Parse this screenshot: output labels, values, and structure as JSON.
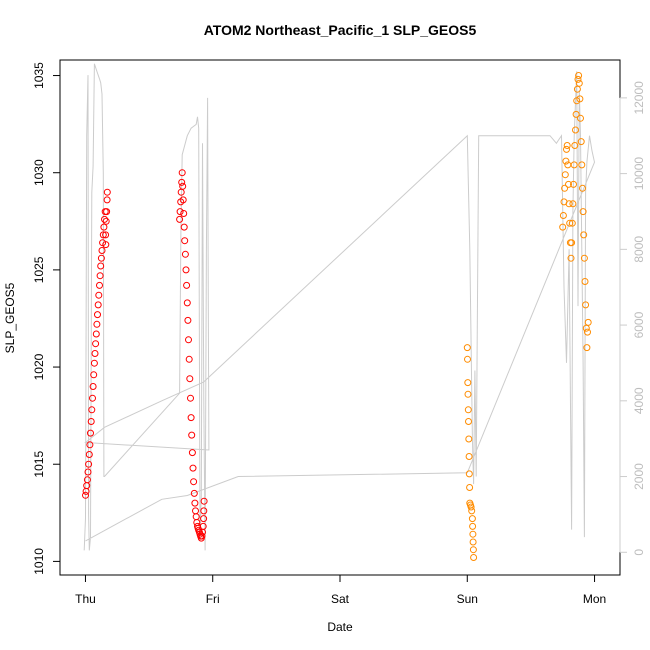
{
  "chart_data": {
    "type": "scatter",
    "title": "ATOM2 Northeast_Pacific_1 SLP_GEOS5",
    "xlabel": "Date",
    "ylabel": "SLP_GEOS5",
    "x_ticks": [
      "Thu",
      "Fri",
      "Sat",
      "Sun",
      "Mon"
    ],
    "x_range_days": [
      -0.2,
      4.2
    ],
    "ylim": [
      1009.3,
      1035.8
    ],
    "y_ticks": [
      1010,
      1015,
      1020,
      1025,
      1030,
      1035
    ],
    "y2lim": [
      -600,
      13000
    ],
    "y2_ticks": [
      0,
      2000,
      4000,
      6000,
      8000,
      10000,
      12000
    ],
    "altitude_color": "#cccccc",
    "series": [
      {
        "color": "#ff0000",
        "points": [
          [
            0.0,
            1013.4
          ],
          [
            0.005,
            1013.6
          ],
          [
            0.01,
            1013.9
          ],
          [
            0.015,
            1014.2
          ],
          [
            0.02,
            1014.6
          ],
          [
            0.025,
            1015.0
          ],
          [
            0.03,
            1015.5
          ],
          [
            0.035,
            1016.0
          ],
          [
            0.04,
            1016.6
          ],
          [
            0.045,
            1017.2
          ],
          [
            0.05,
            1017.8
          ],
          [
            0.055,
            1018.4
          ],
          [
            0.06,
            1019.0
          ],
          [
            0.065,
            1019.6
          ],
          [
            0.07,
            1020.2
          ],
          [
            0.075,
            1020.7
          ],
          [
            0.08,
            1021.2
          ],
          [
            0.085,
            1021.7
          ],
          [
            0.09,
            1022.2
          ],
          [
            0.095,
            1022.7
          ],
          [
            0.1,
            1023.2
          ],
          [
            0.105,
            1023.7
          ],
          [
            0.11,
            1024.2
          ],
          [
            0.115,
            1024.7
          ],
          [
            0.12,
            1025.2
          ],
          [
            0.125,
            1025.6
          ],
          [
            0.13,
            1026.0
          ],
          [
            0.135,
            1026.4
          ],
          [
            0.14,
            1026.8
          ],
          [
            0.145,
            1027.2
          ],
          [
            0.15,
            1027.6
          ],
          [
            0.155,
            1028.0
          ],
          [
            0.158,
            1026.8
          ],
          [
            0.16,
            1026.3
          ],
          [
            0.163,
            1027.5
          ],
          [
            0.166,
            1028.0
          ],
          [
            0.17,
            1028.6
          ],
          [
            0.172,
            1029.0
          ],
          [
            0.74,
            1027.6
          ],
          [
            0.744,
            1028.0
          ],
          [
            0.748,
            1028.5
          ],
          [
            0.752,
            1029.0
          ],
          [
            0.756,
            1029.5
          ],
          [
            0.76,
            1030.0
          ],
          [
            0.764,
            1029.3
          ],
          [
            0.768,
            1028.6
          ],
          [
            0.772,
            1027.9
          ],
          [
            0.776,
            1027.2
          ],
          [
            0.78,
            1026.5
          ],
          [
            0.785,
            1025.8
          ],
          [
            0.79,
            1025.0
          ],
          [
            0.795,
            1024.2
          ],
          [
            0.8,
            1023.3
          ],
          [
            0.805,
            1022.4
          ],
          [
            0.81,
            1021.4
          ],
          [
            0.815,
            1020.4
          ],
          [
            0.82,
            1019.4
          ],
          [
            0.825,
            1018.4
          ],
          [
            0.83,
            1017.4
          ],
          [
            0.835,
            1016.5
          ],
          [
            0.84,
            1015.6
          ],
          [
            0.845,
            1014.8
          ],
          [
            0.85,
            1014.1
          ],
          [
            0.855,
            1013.5
          ],
          [
            0.86,
            1013.0
          ],
          [
            0.865,
            1012.6
          ],
          [
            0.87,
            1012.3
          ],
          [
            0.875,
            1012.0
          ],
          [
            0.88,
            1011.8
          ],
          [
            0.885,
            1011.7
          ],
          [
            0.89,
            1011.6
          ],
          [
            0.895,
            1011.5
          ],
          [
            0.9,
            1011.4
          ],
          [
            0.905,
            1011.3
          ],
          [
            0.91,
            1011.2
          ],
          [
            0.915,
            1011.3
          ],
          [
            0.92,
            1011.5
          ],
          [
            0.925,
            1011.8
          ],
          [
            0.928,
            1012.2
          ],
          [
            0.93,
            1012.6
          ],
          [
            0.932,
            1013.1
          ]
        ]
      },
      {
        "color": "#ff8c00",
        "points": [
          [
            3.0,
            1021.0
          ],
          [
            3.002,
            1020.4
          ],
          [
            3.004,
            1019.2
          ],
          [
            3.006,
            1018.6
          ],
          [
            3.008,
            1017.8
          ],
          [
            3.01,
            1017.2
          ],
          [
            3.012,
            1016.3
          ],
          [
            3.014,
            1015.4
          ],
          [
            3.016,
            1014.5
          ],
          [
            3.018,
            1013.8
          ],
          [
            3.02,
            1013.0
          ],
          [
            3.025,
            1012.9
          ],
          [
            3.03,
            1012.8
          ],
          [
            3.035,
            1012.6
          ],
          [
            3.04,
            1012.2
          ],
          [
            3.042,
            1011.8
          ],
          [
            3.044,
            1011.4
          ],
          [
            3.046,
            1011.0
          ],
          [
            3.048,
            1010.6
          ],
          [
            3.05,
            1010.2
          ],
          [
            3.75,
            1027.2
          ],
          [
            3.755,
            1027.8
          ],
          [
            3.76,
            1028.5
          ],
          [
            3.765,
            1029.2
          ],
          [
            3.77,
            1029.9
          ],
          [
            3.775,
            1030.6
          ],
          [
            3.78,
            1031.2
          ],
          [
            3.785,
            1031.4
          ],
          [
            3.79,
            1030.4
          ],
          [
            3.795,
            1029.4
          ],
          [
            3.8,
            1028.4
          ],
          [
            3.805,
            1027.4
          ],
          [
            3.81,
            1026.4
          ],
          [
            3.815,
            1025.6
          ],
          [
            3.82,
            1026.4
          ],
          [
            3.825,
            1027.4
          ],
          [
            3.83,
            1028.4
          ],
          [
            3.835,
            1029.4
          ],
          [
            3.84,
            1030.4
          ],
          [
            3.845,
            1031.4
          ],
          [
            3.85,
            1032.2
          ],
          [
            3.855,
            1033.0
          ],
          [
            3.86,
            1033.7
          ],
          [
            3.865,
            1034.3
          ],
          [
            3.87,
            1034.8
          ],
          [
            3.875,
            1035.0
          ],
          [
            3.88,
            1034.6
          ],
          [
            3.885,
            1033.8
          ],
          [
            3.89,
            1032.8
          ],
          [
            3.895,
            1031.6
          ],
          [
            3.9,
            1030.4
          ],
          [
            3.905,
            1029.2
          ],
          [
            3.91,
            1028.0
          ],
          [
            3.915,
            1026.8
          ],
          [
            3.92,
            1025.6
          ],
          [
            3.925,
            1024.4
          ],
          [
            3.93,
            1023.2
          ],
          [
            3.935,
            1022.0
          ],
          [
            3.94,
            1021.0
          ],
          [
            3.945,
            1021.8
          ],
          [
            3.95,
            1022.3
          ]
        ]
      }
    ],
    "altitude_line": [
      [
        -0.01,
        50
      ],
      [
        0.0,
        900
      ],
      [
        0.01,
        11000
      ],
      [
        0.02,
        12600
      ],
      [
        0.025,
        1000
      ],
      [
        0.03,
        50
      ],
      [
        0.04,
        400
      ],
      [
        0.05,
        9500
      ],
      [
        0.06,
        10200
      ],
      [
        0.07,
        12900
      ],
      [
        0.09,
        12700
      ],
      [
        0.11,
        12500
      ],
      [
        0.12,
        12400
      ],
      [
        0.13,
        12100
      ],
      [
        0.14,
        10000
      ],
      [
        0.145,
        2000
      ],
      [
        0.15,
        2000
      ],
      [
        0.74,
        4200
      ],
      [
        0.75,
        8500
      ],
      [
        0.76,
        10500
      ],
      [
        0.8,
        11000
      ],
      [
        0.83,
        11200
      ],
      [
        0.87,
        11300
      ],
      [
        0.88,
        11500
      ],
      [
        0.89,
        11200
      ],
      [
        0.9,
        400
      ],
      [
        0.91,
        1500
      ],
      [
        0.92,
        10800
      ],
      [
        0.93,
        4000
      ],
      [
        0.94,
        50
      ],
      [
        0.95,
        8000
      ],
      [
        0.96,
        12000
      ],
      [
        0.965,
        6500
      ],
      [
        0.97,
        2700
      ],
      [
        0.0,
        2900
      ],
      [
        0.15,
        3300
      ],
      [
        0.6,
        4000
      ],
      [
        0.93,
        4500
      ],
      [
        3.0,
        11000
      ],
      [
        3.02,
        8000
      ],
      [
        3.03,
        5500
      ],
      [
        3.04,
        3000
      ],
      [
        3.05,
        1800
      ],
      [
        3.06,
        4800
      ],
      [
        3.07,
        2000
      ],
      [
        3.09,
        11000
      ],
      [
        3.65,
        11000
      ],
      [
        3.7,
        10800
      ],
      [
        3.72,
        10900
      ],
      [
        3.74,
        11000
      ],
      [
        3.76,
        7000
      ],
      [
        3.78,
        5000
      ],
      [
        3.8,
        8000
      ],
      [
        3.82,
        600
      ],
      [
        3.83,
        9000
      ],
      [
        3.84,
        11000
      ],
      [
        3.86,
        12700
      ],
      [
        3.87,
        6500
      ],
      [
        3.88,
        12200
      ],
      [
        3.89,
        11000
      ],
      [
        3.9,
        8000
      ],
      [
        3.91,
        5000
      ],
      [
        3.92,
        400
      ],
      [
        3.93,
        9500
      ],
      [
        3.94,
        10300
      ],
      [
        3.96,
        11000
      ],
      [
        3.98,
        10600
      ],
      [
        4.0,
        10300
      ],
      [
        3.0,
        2100
      ],
      [
        1.2,
        2000
      ],
      [
        0.8,
        1500
      ],
      [
        0.6,
        1400
      ],
      [
        0.0,
        300
      ]
    ]
  }
}
